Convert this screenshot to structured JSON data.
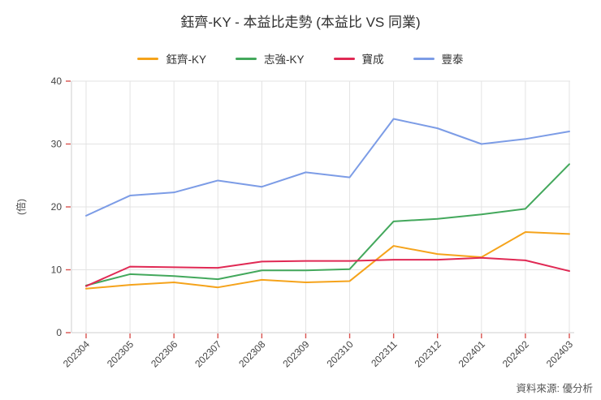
{
  "title": "鈺齊-KY - 本益比走勢 (本益比 VS 同業)",
  "source": "資料來源: 優分析",
  "chart_data": {
    "type": "line",
    "title": "鈺齊-KY - 本益比走勢 (本益比 VS 同業)",
    "categories": [
      "202304",
      "202305",
      "202306",
      "202307",
      "202308",
      "202309",
      "202310",
      "202311",
      "202312",
      "202401",
      "202402",
      "202403"
    ],
    "series": [
      {
        "name": "鈺齊-KY",
        "color": "#f5a31b",
        "values": [
          7.0,
          7.6,
          8.0,
          7.2,
          8.4,
          8.0,
          8.2,
          13.8,
          12.5,
          12.0,
          16.0,
          15.7
        ]
      },
      {
        "name": "志強-KY",
        "color": "#43a85c",
        "values": [
          7.5,
          9.3,
          9.0,
          8.5,
          9.9,
          9.9,
          10.1,
          17.7,
          18.1,
          18.8,
          19.7,
          26.8
        ]
      },
      {
        "name": "寶成",
        "color": "#e02954",
        "values": [
          7.4,
          10.5,
          10.4,
          10.3,
          11.3,
          11.4,
          11.4,
          11.6,
          11.6,
          11.9,
          11.5,
          9.8
        ]
      },
      {
        "name": "豐泰",
        "color": "#7c9ce6",
        "values": [
          18.6,
          21.8,
          22.3,
          24.2,
          23.2,
          25.5,
          24.7,
          34.0,
          32.5,
          30.0,
          30.8,
          32.0
        ]
      }
    ],
    "xlabel": "",
    "ylabel": "(倍)",
    "ylim": [
      0,
      40
    ],
    "yticks": [
      0,
      10,
      20,
      30,
      40
    ],
    "grid": true,
    "legend_position": "top",
    "grid_color": "#e3e3e3",
    "axis_line_color": "#cfcfcf",
    "axis_tick_color": "#d9534f"
  }
}
